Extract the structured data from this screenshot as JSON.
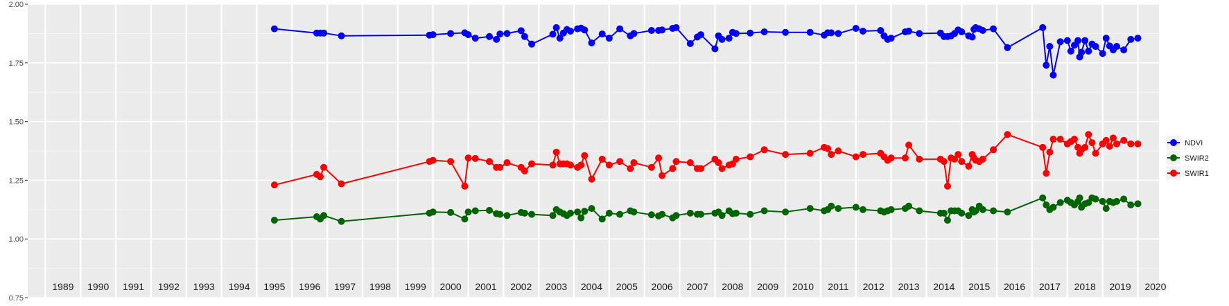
{
  "chart_data": {
    "type": "line",
    "title": "",
    "xlabel": "",
    "ylabel": "",
    "ylim": [
      0.75,
      2.0
    ],
    "y_ticks": [
      0.75,
      1.0,
      1.25,
      1.5,
      1.75,
      2.0
    ],
    "y_tick_labels": [
      "0.75",
      "1.00",
      "1.25",
      "1.50",
      "1.75",
      "2.00"
    ],
    "xlim": [
      1988.5,
      2020.6
    ],
    "year_labels": [
      "1989",
      "1990",
      "1991",
      "1992",
      "1993",
      "1994",
      "1995",
      "1996",
      "1997",
      "1998",
      "1999",
      "2000",
      "2001",
      "2002",
      "2003",
      "2004",
      "2005",
      "2006",
      "2007",
      "2008",
      "2009",
      "2010",
      "2011",
      "2012",
      "2013",
      "2014",
      "2015",
      "2016",
      "2017",
      "2018",
      "2019",
      "2020"
    ],
    "year_dividers": [
      1989,
      1990,
      1991,
      1992,
      1993,
      1994,
      1995,
      1996,
      1997,
      1998,
      1999,
      2000,
      2001,
      2002,
      2003,
      2004,
      2005,
      2006,
      2007,
      2008,
      2009,
      2010,
      2011,
      2012,
      2013,
      2014,
      2015,
      2016,
      2017,
      2018,
      2019,
      2020
    ],
    "grid": true,
    "legend_position": "right",
    "series": [
      {
        "name": "NDVI",
        "color": "#0000ff",
        "x": [
          1995.5,
          1996.7,
          1996.8,
          1996.9,
          1997.4,
          1999.9,
          2000.0,
          2000.5,
          2000.9,
          2001.0,
          2001.2,
          2001.6,
          2001.8,
          2001.9,
          2002.1,
          2002.5,
          2002.6,
          2002.8,
          2003.4,
          2003.5,
          2003.6,
          2003.7,
          2003.8,
          2003.9,
          2004.1,
          2004.2,
          2004.3,
          2004.5,
          2004.8,
          2005.0,
          2005.3,
          2005.6,
          2005.7,
          2006.2,
          2006.4,
          2006.5,
          2006.8,
          2006.9,
          2007.3,
          2007.5,
          2007.6,
          2008.0,
          2008.1,
          2008.2,
          2008.4,
          2008.5,
          2008.6,
          2009.0,
          2009.4,
          2010.0,
          2010.7,
          2011.1,
          2011.2,
          2011.3,
          2011.5,
          2012.0,
          2012.2,
          2012.7,
          2012.8,
          2012.9,
          2013.0,
          2013.4,
          2013.5,
          2013.8,
          2014.4,
          2014.5,
          2014.6,
          2014.7,
          2014.8,
          2014.9,
          2015.0,
          2015.2,
          2015.3,
          2015.35,
          2015.4,
          2015.5,
          2015.6,
          2015.9,
          2016.3,
          2017.3,
          2017.4,
          2017.5,
          2017.6,
          2017.8,
          2018.0,
          2018.1,
          2018.2,
          2018.3,
          2018.35,
          2018.4,
          2018.5,
          2018.6,
          2018.7,
          2018.8,
          2019.0,
          2019.1,
          2019.2,
          2019.3,
          2019.4,
          2019.6,
          2019.8,
          2020.0
        ],
        "values": [
          1.895,
          1.877,
          1.877,
          1.877,
          1.865,
          1.868,
          1.87,
          1.875,
          1.878,
          1.87,
          1.855,
          1.862,
          1.85,
          1.873,
          1.875,
          1.887,
          1.862,
          1.83,
          1.872,
          1.9,
          1.855,
          1.877,
          1.892,
          1.885,
          1.895,
          1.898,
          1.89,
          1.835,
          1.873,
          1.855,
          1.895,
          1.865,
          1.875,
          1.888,
          1.888,
          1.89,
          1.897,
          1.9,
          1.832,
          1.86,
          1.87,
          1.81,
          1.865,
          1.85,
          1.855,
          1.88,
          1.875,
          1.877,
          1.882,
          1.88,
          1.88,
          1.868,
          1.878,
          1.878,
          1.875,
          1.897,
          1.885,
          1.888,
          1.865,
          1.85,
          1.855,
          1.882,
          1.885,
          1.875,
          1.877,
          1.862,
          1.862,
          1.865,
          1.875,
          1.89,
          1.882,
          1.865,
          1.86,
          1.893,
          1.9,
          1.895,
          1.888,
          1.895,
          1.815,
          1.9,
          1.74,
          1.82,
          1.698,
          1.84,
          1.845,
          1.8,
          1.825,
          1.845,
          1.775,
          1.795,
          1.845,
          1.8,
          1.83,
          1.82,
          1.79,
          1.855,
          1.822,
          1.805,
          1.82,
          1.805,
          1.85,
          1.855
        ]
      },
      {
        "name": "SWIR2",
        "color": "#006400",
        "x": [
          1995.5,
          1996.7,
          1996.8,
          1996.9,
          1997.4,
          1999.9,
          2000.0,
          2000.5,
          2000.9,
          2001.0,
          2001.2,
          2001.6,
          2001.8,
          2001.9,
          2002.1,
          2002.5,
          2002.6,
          2002.8,
          2003.4,
          2003.5,
          2003.6,
          2003.7,
          2003.8,
          2003.9,
          2004.1,
          2004.2,
          2004.3,
          2004.5,
          2004.8,
          2005.0,
          2005.3,
          2005.6,
          2005.7,
          2006.2,
          2006.4,
          2006.5,
          2006.8,
          2006.9,
          2007.3,
          2007.5,
          2007.6,
          2008.0,
          2008.1,
          2008.2,
          2008.4,
          2008.5,
          2008.6,
          2009.0,
          2009.4,
          2010.0,
          2010.7,
          2011.1,
          2011.2,
          2011.3,
          2011.5,
          2012.0,
          2012.2,
          2012.7,
          2012.8,
          2012.9,
          2013.0,
          2013.4,
          2013.5,
          2013.8,
          2014.4,
          2014.5,
          2014.6,
          2014.7,
          2014.8,
          2014.9,
          2015.0,
          2015.2,
          2015.3,
          2015.35,
          2015.4,
          2015.5,
          2015.6,
          2015.9,
          2016.3,
          2017.3,
          2017.4,
          2017.5,
          2017.6,
          2017.8,
          2018.0,
          2018.1,
          2018.2,
          2018.3,
          2018.35,
          2018.4,
          2018.5,
          2018.6,
          2018.7,
          2018.8,
          2019.0,
          2019.1,
          2019.2,
          2019.3,
          2019.4,
          2019.6,
          2019.8,
          2020.0
        ],
        "values": [
          1.08,
          1.095,
          1.085,
          1.1,
          1.075,
          1.11,
          1.115,
          1.113,
          1.085,
          1.115,
          1.12,
          1.122,
          1.108,
          1.105,
          1.1,
          1.113,
          1.11,
          1.105,
          1.1,
          1.125,
          1.115,
          1.108,
          1.1,
          1.11,
          1.115,
          1.09,
          1.118,
          1.13,
          1.085,
          1.11,
          1.105,
          1.12,
          1.115,
          1.103,
          1.098,
          1.105,
          1.09,
          1.1,
          1.11,
          1.105,
          1.105,
          1.11,
          1.115,
          1.1,
          1.12,
          1.108,
          1.11,
          1.105,
          1.12,
          1.115,
          1.13,
          1.12,
          1.125,
          1.14,
          1.13,
          1.135,
          1.125,
          1.12,
          1.115,
          1.12,
          1.125,
          1.13,
          1.14,
          1.12,
          1.11,
          1.11,
          1.08,
          1.12,
          1.12,
          1.12,
          1.11,
          1.1,
          1.125,
          1.115,
          1.12,
          1.14,
          1.125,
          1.12,
          1.115,
          1.175,
          1.145,
          1.125,
          1.135,
          1.155,
          1.165,
          1.155,
          1.145,
          1.16,
          1.175,
          1.135,
          1.15,
          1.155,
          1.175,
          1.17,
          1.16,
          1.13,
          1.16,
          1.155,
          1.16,
          1.17,
          1.145,
          1.15
        ]
      },
      {
        "name": "SWIR1",
        "color": "#ff0000",
        "x": [
          1995.5,
          1996.7,
          1996.8,
          1996.9,
          1997.4,
          1999.9,
          2000.0,
          2000.5,
          2000.9,
          2001.0,
          2001.2,
          2001.6,
          2001.8,
          2001.9,
          2002.1,
          2002.5,
          2002.6,
          2002.8,
          2003.4,
          2003.5,
          2003.6,
          2003.7,
          2003.8,
          2003.9,
          2004.1,
          2004.2,
          2004.3,
          2004.5,
          2004.8,
          2005.0,
          2005.3,
          2005.6,
          2005.7,
          2006.2,
          2006.4,
          2006.5,
          2006.8,
          2006.9,
          2007.3,
          2007.5,
          2007.6,
          2008.0,
          2008.1,
          2008.2,
          2008.4,
          2008.5,
          2008.6,
          2009.0,
          2009.4,
          2010.0,
          2010.7,
          2011.1,
          2011.2,
          2011.3,
          2011.5,
          2012.0,
          2012.2,
          2012.7,
          2012.8,
          2012.9,
          2013.0,
          2013.4,
          2013.5,
          2013.8,
          2014.4,
          2014.5,
          2014.6,
          2014.7,
          2014.8,
          2014.9,
          2015.0,
          2015.2,
          2015.3,
          2015.35,
          2015.4,
          2015.5,
          2015.6,
          2015.9,
          2016.3,
          2017.3,
          2017.4,
          2017.5,
          2017.6,
          2017.8,
          2018.0,
          2018.1,
          2018.2,
          2018.3,
          2018.35,
          2018.4,
          2018.5,
          2018.6,
          2018.7,
          2018.8,
          2019.0,
          2019.1,
          2019.2,
          2019.3,
          2019.4,
          2019.6,
          2019.8,
          2020.0
        ],
        "values": [
          1.23,
          1.275,
          1.265,
          1.305,
          1.235,
          1.33,
          1.335,
          1.33,
          1.225,
          1.345,
          1.343,
          1.33,
          1.305,
          1.305,
          1.325,
          1.305,
          1.29,
          1.32,
          1.315,
          1.37,
          1.32,
          1.32,
          1.32,
          1.315,
          1.305,
          1.315,
          1.355,
          1.255,
          1.34,
          1.315,
          1.33,
          1.3,
          1.325,
          1.305,
          1.345,
          1.27,
          1.3,
          1.33,
          1.325,
          1.3,
          1.3,
          1.34,
          1.325,
          1.3,
          1.315,
          1.32,
          1.34,
          1.35,
          1.38,
          1.36,
          1.365,
          1.39,
          1.385,
          1.36,
          1.375,
          1.35,
          1.36,
          1.365,
          1.35,
          1.335,
          1.345,
          1.345,
          1.4,
          1.34,
          1.34,
          1.33,
          1.225,
          1.345,
          1.34,
          1.36,
          1.33,
          1.31,
          1.36,
          1.345,
          1.335,
          1.33,
          1.34,
          1.38,
          1.445,
          1.39,
          1.28,
          1.37,
          1.425,
          1.425,
          1.405,
          1.415,
          1.425,
          1.39,
          1.365,
          1.38,
          1.39,
          1.445,
          1.41,
          1.365,
          1.405,
          1.42,
          1.395,
          1.43,
          1.405,
          1.42,
          1.405,
          1.405
        ]
      }
    ]
  }
}
